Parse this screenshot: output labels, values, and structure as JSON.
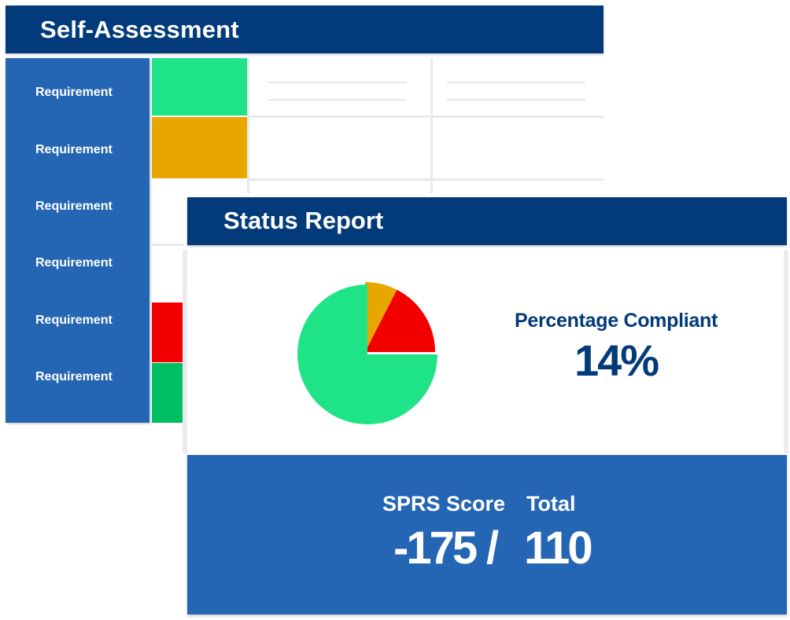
{
  "self_assessment": {
    "title": "Self-Assessment",
    "requirements": [
      {
        "label": "Requirement",
        "status_color": "#1fe387"
      },
      {
        "label": "Requirement",
        "status_color": "#e8a700"
      },
      {
        "label": "Requirement",
        "status_color": ""
      },
      {
        "label": "Requirement",
        "status_color": ""
      },
      {
        "label": "Requirement",
        "status_color": "#f20000"
      },
      {
        "label": "Requirement",
        "status_color": "#00bf63"
      }
    ]
  },
  "status_report": {
    "title": "Status Report",
    "percentage_label": "Percentage Compliant",
    "percentage_value": "14%",
    "sprs_label": "SPRS Score",
    "total_label": "Total",
    "sprs_value": "-175",
    "separator": "/",
    "total_value": "110"
  },
  "colors": {
    "navy": "#023a7a",
    "blue": "#2566b4",
    "green": "#1fe387",
    "amber": "#e8a700",
    "red": "#f20000"
  },
  "chart_data": {
    "type": "pie",
    "slices": [
      {
        "value": 7.5,
        "color": "#e8a700"
      },
      {
        "value": 17.5,
        "color": "#f20000"
      },
      {
        "value": 75,
        "color": "#1fe387"
      }
    ],
    "start": "top",
    "exploded_slice": 2
  }
}
